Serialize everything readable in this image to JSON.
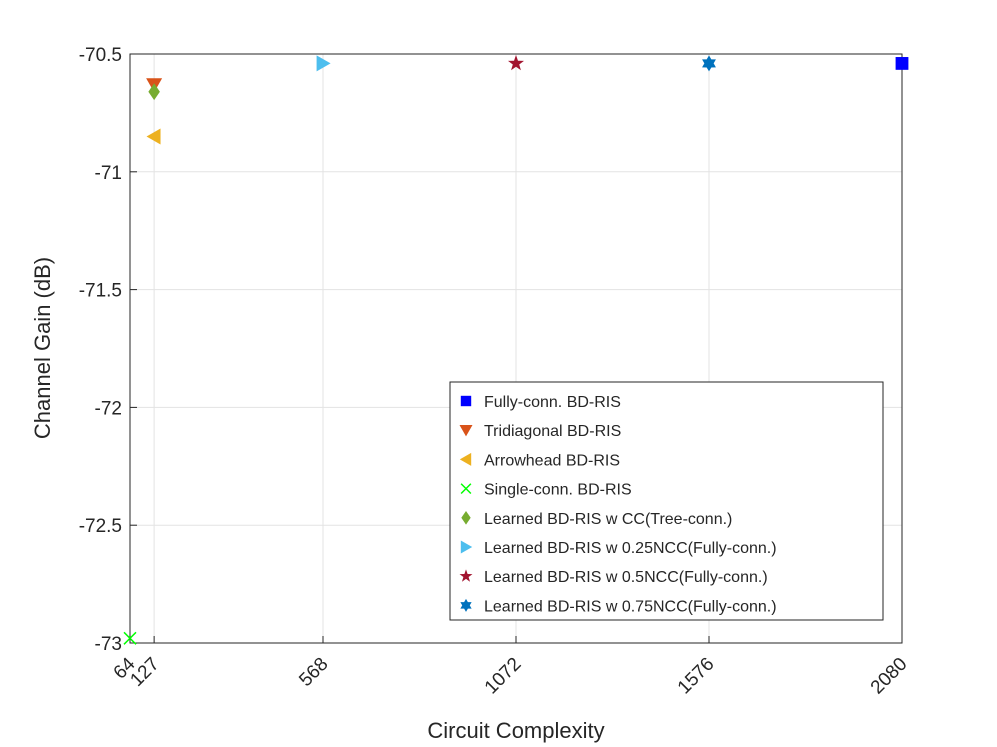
{
  "chart_data": {
    "type": "scatter",
    "xlabel": "Circuit Complexity",
    "ylabel": "Channel Gain (dB)",
    "xlim": [
      64,
      2080
    ],
    "ylim": [
      -73,
      -70.5
    ],
    "xticks": [
      64,
      127,
      568,
      1072,
      1576,
      2080
    ],
    "xtick_labels": [
      "64",
      "127",
      "568",
      "1072",
      "1576",
      "2080"
    ],
    "yticks": [
      -70.5,
      -71,
      -71.5,
      -72,
      -72.5,
      -73
    ],
    "ytick_labels": [
      "-70.5",
      "-71",
      "-71.5",
      "-72",
      "-72.5",
      "-73"
    ],
    "grid": true,
    "legend_position": "bottom-right",
    "series": [
      {
        "name": "Fully-conn. BD-RIS",
        "marker": "square",
        "color": "#0000ff",
        "x": [
          2080
        ],
        "y": [
          -70.54
        ]
      },
      {
        "name": "Tridiagonal BD-RIS",
        "marker": "triangle-down",
        "color": "#d95319",
        "x": [
          127
        ],
        "y": [
          -70.63
        ]
      },
      {
        "name": "Arrowhead BD-RIS",
        "marker": "triangle-left",
        "color": "#edb120",
        "x": [
          127
        ],
        "y": [
          -70.85
        ]
      },
      {
        "name": "Single-conn. BD-RIS",
        "marker": "x",
        "color": "#00ff00",
        "x": [
          64
        ],
        "y": [
          -72.98
        ]
      },
      {
        "name": "Learned BD-RIS w CC(Tree-conn.)",
        "marker": "diamond",
        "color": "#77ac30",
        "x": [
          127
        ],
        "y": [
          -70.66
        ]
      },
      {
        "name": "Learned BD-RIS w 0.25NCC(Fully-conn.)",
        "marker": "triangle-right",
        "color": "#4dbeee",
        "x": [
          568
        ],
        "y": [
          -70.54
        ]
      },
      {
        "name": "Learned BD-RIS w 0.5NCC(Fully-conn.)",
        "marker": "pentagram",
        "color": "#a2142f",
        "x": [
          1072
        ],
        "y": [
          -70.54
        ]
      },
      {
        "name": "Learned BD-RIS w 0.75NCC(Fully-conn.)",
        "marker": "hexagram",
        "color": "#0072bd",
        "x": [
          1576
        ],
        "y": [
          -70.54
        ]
      }
    ]
  }
}
